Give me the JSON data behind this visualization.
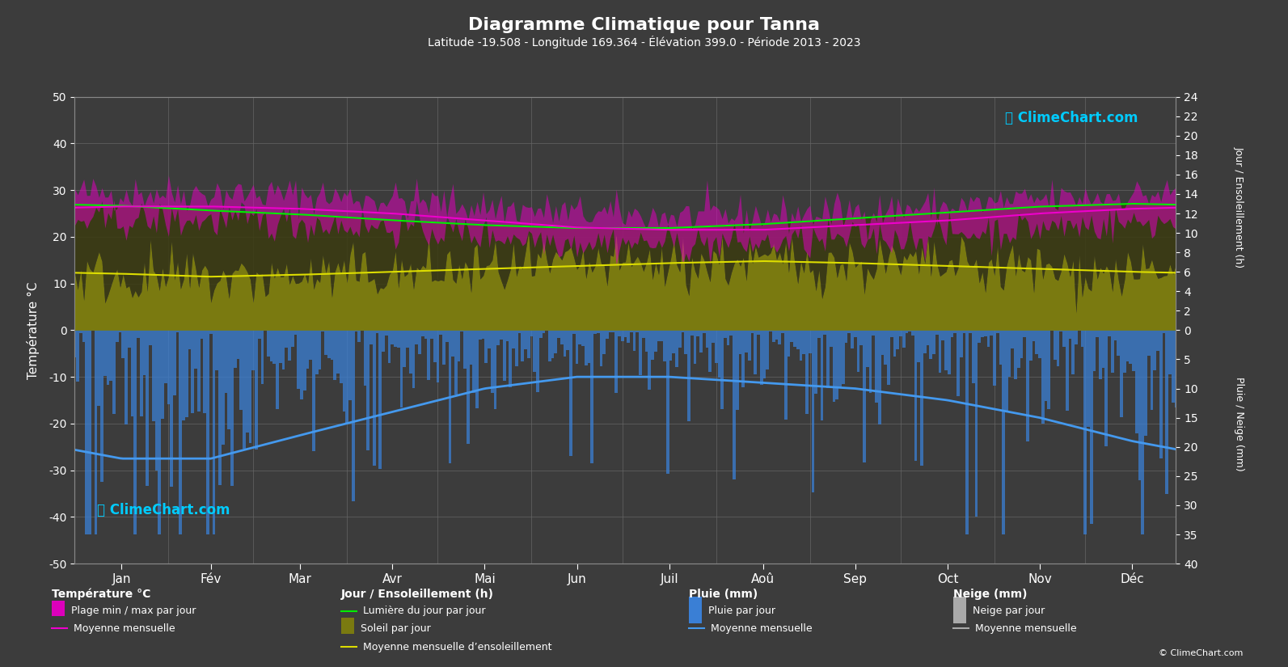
{
  "title": "Diagramme Climatique pour Tanna",
  "subtitle": "Latitude -19.508 - Longitude 169.364 - Élévation 399.0 - Période 2013 - 2023",
  "background_color": "#3c3c3c",
  "text_color": "#ffffff",
  "grid_color": "#555555",
  "months": [
    "Jan",
    "Fév",
    "Mar",
    "Avr",
    "Mai",
    "Jun",
    "Juil",
    "Aoû",
    "Sep",
    "Oct",
    "Nov",
    "Déc"
  ],
  "temp_ylim": [
    -50,
    50
  ],
  "temp_mean": [
    26.5,
    26.5,
    26.0,
    25.0,
    23.5,
    22.0,
    21.5,
    21.5,
    22.5,
    23.5,
    25.0,
    26.0
  ],
  "temp_max_mean": [
    29.5,
    29.5,
    29.0,
    28.0,
    26.5,
    25.0,
    24.5,
    24.5,
    25.5,
    26.5,
    28.0,
    29.0
  ],
  "temp_min_mean": [
    23.5,
    23.5,
    23.0,
    22.0,
    20.5,
    19.0,
    18.5,
    18.5,
    19.5,
    20.5,
    22.0,
    23.0
  ],
  "daylight_hours": [
    12.8,
    12.3,
    11.9,
    11.3,
    10.8,
    10.5,
    10.5,
    10.9,
    11.5,
    12.1,
    12.7,
    13.0
  ],
  "sunshine_hours": [
    5.5,
    5.2,
    5.5,
    5.8,
    6.2,
    6.5,
    6.8,
    7.0,
    6.8,
    6.5,
    6.2,
    5.8
  ],
  "sunshine_mean": [
    5.8,
    5.5,
    5.7,
    6.0,
    6.3,
    6.6,
    6.9,
    7.1,
    6.9,
    6.6,
    6.3,
    6.0
  ],
  "rain_monthly_mean_mm": [
    22,
    22,
    18,
    14,
    10,
    8,
    8,
    9,
    10,
    12,
    15,
    19
  ],
  "logo_text": "ClimeChart.com",
  "copyright_text": "© ClimeChart.com",
  "ylabel_left": "Température °C",
  "ylabel_right_top": "Jour / Ensoleillement (h)",
  "ylabel_right_bottom": "Pluie / Neige (mm)",
  "legend_temp_label": "Température °C",
  "legend_sun_label": "Jour / Ensoleillement (h)",
  "legend_rain_label": "Pluie (mm)",
  "legend_snow_label": "Neige (mm)"
}
